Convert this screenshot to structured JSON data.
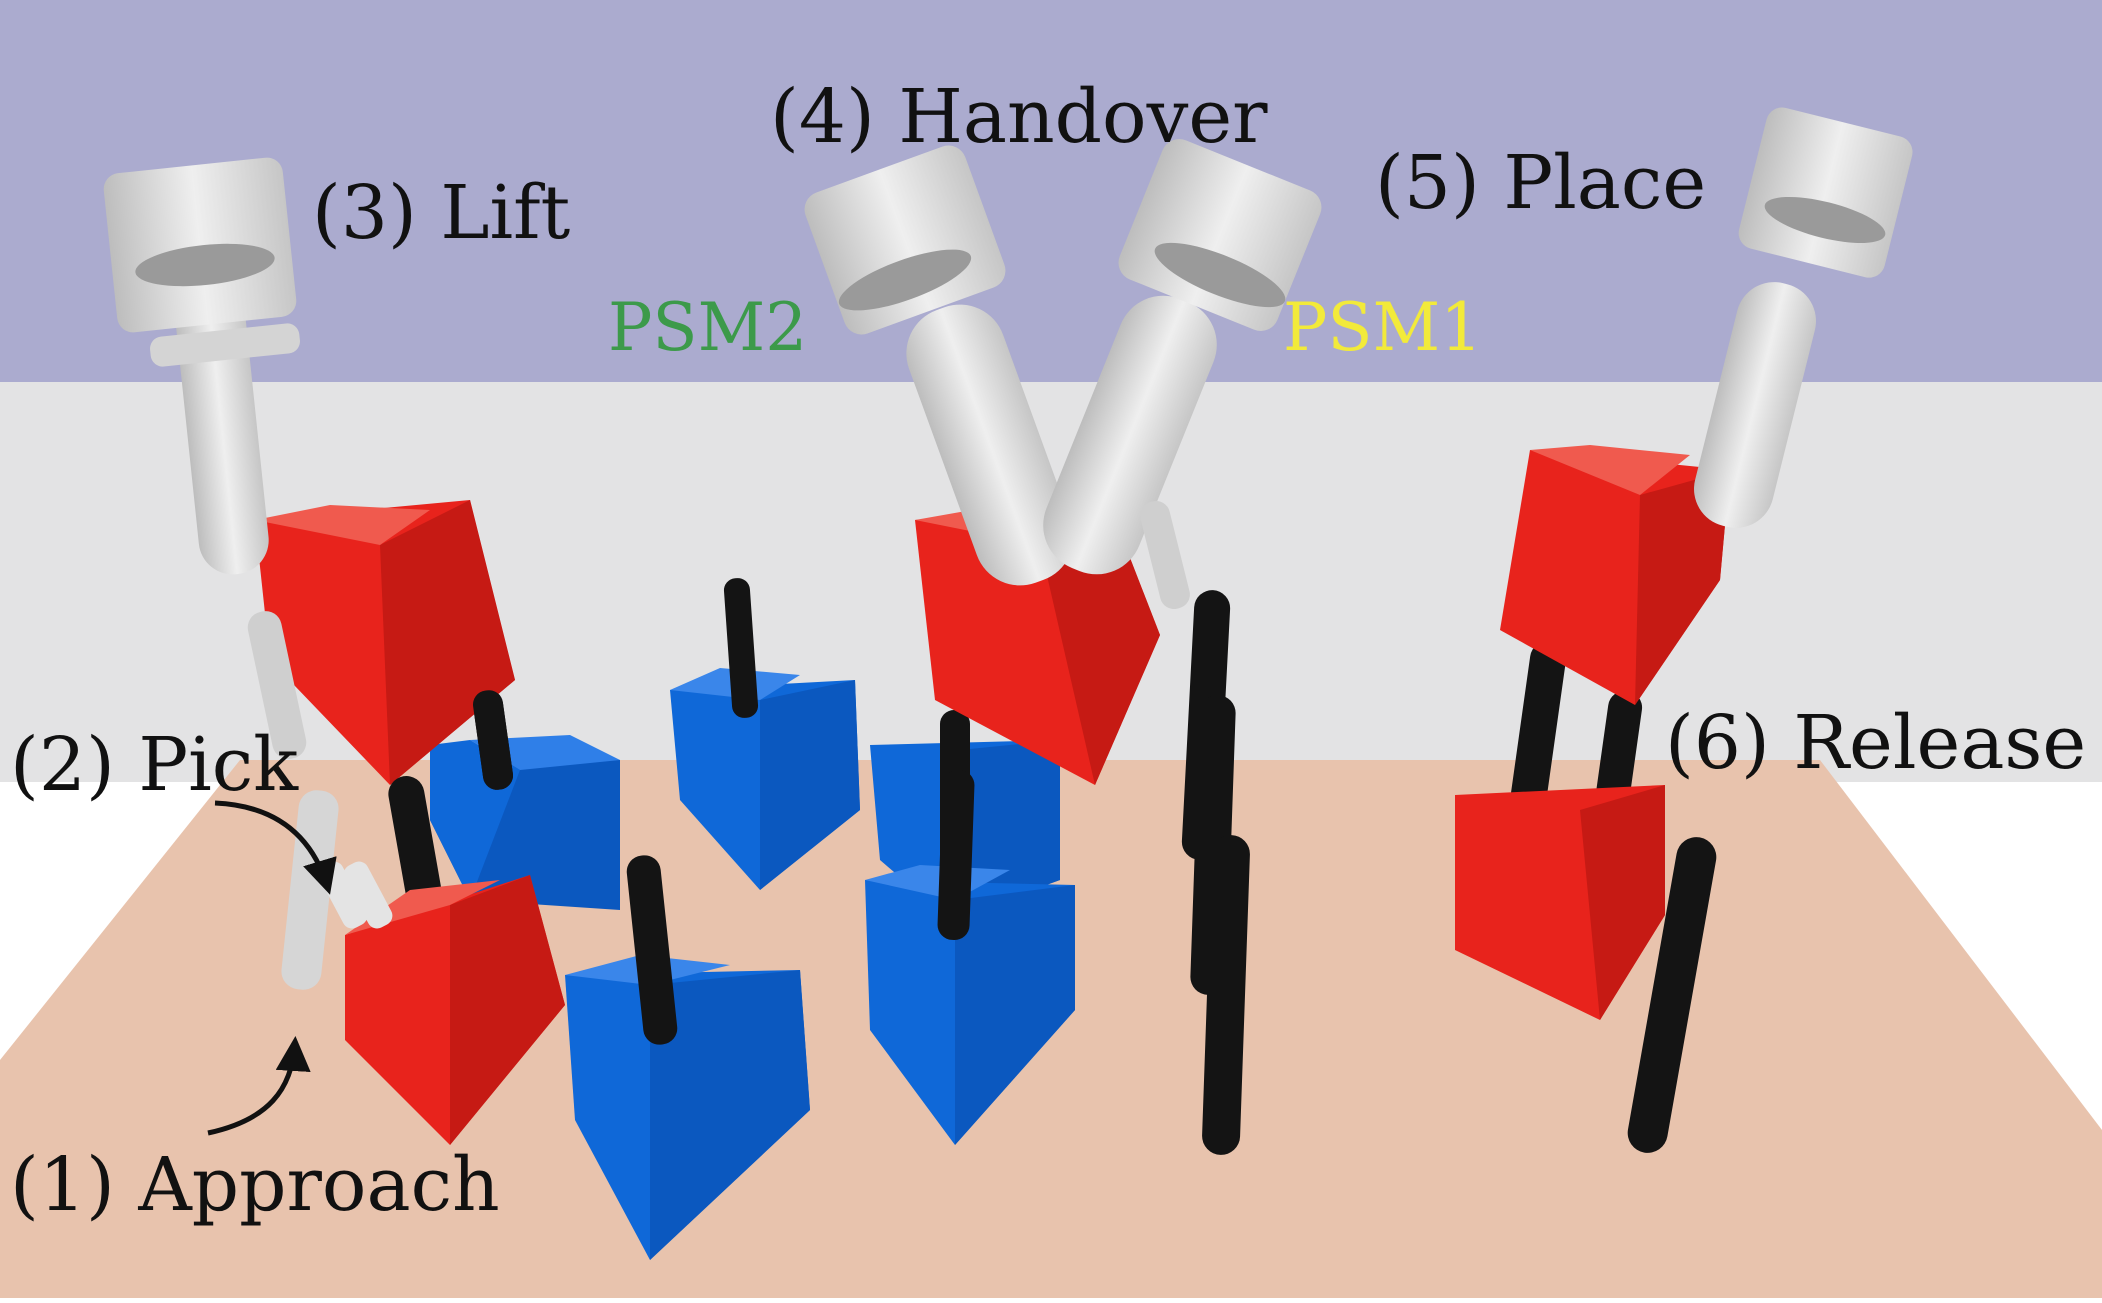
{
  "colors": {
    "wall_top": "#ababcf",
    "wall_bottom": "#e3e3e4",
    "table": "#e8c3ad",
    "peg_board_red": "#e8231c",
    "block_blue": "#0f68d8",
    "peg": "#141414",
    "gripper": "#dcdcdc",
    "psm1": "#f2ea3a",
    "psm2": "#3c9a4a"
  },
  "steps": [
    {
      "id": "approach",
      "label": "(1) Approach"
    },
    {
      "id": "pick",
      "label": "(2) Pick"
    },
    {
      "id": "lift",
      "label": "(3) Lift"
    },
    {
      "id": "handover",
      "label": "(4) Handover"
    },
    {
      "id": "place",
      "label": "(5) Place"
    },
    {
      "id": "release",
      "label": "(6) Release"
    }
  ],
  "arms": {
    "psm1": "PSM1",
    "psm2": "PSM2"
  }
}
